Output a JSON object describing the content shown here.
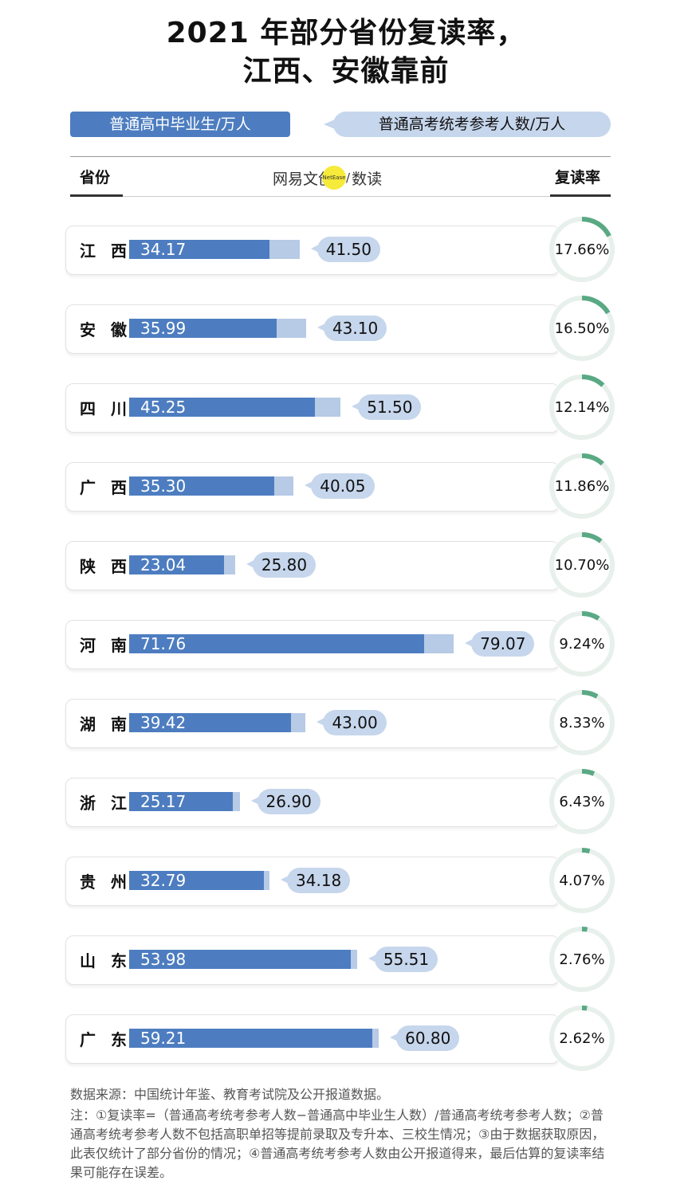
{
  "title_line1": "2021 年部分省份复读率，",
  "title_line2": "江西、安徽靠前",
  "legend": {
    "graduates": "普通高中毕业生/万人",
    "examinees": "普通高考统考参考人数/万人"
  },
  "header": {
    "province": "省份",
    "brand": "网易文创",
    "brand_dot": "NetEase",
    "brand_sep": "/",
    "brand_suffix": "数读",
    "rate": "复读率"
  },
  "colors": {
    "graduates": "#4d7dc0",
    "examinees": "#b7cae6",
    "rate_arc": "#5aa985",
    "ring": "#e8f0ec"
  },
  "chart_data": {
    "type": "bar",
    "categories": [
      "江 西",
      "安 徽",
      "四 川",
      "广 西",
      "陕 西",
      "河 南",
      "湖 南",
      "浙 江",
      "贵 州",
      "山 东",
      "广 东"
    ],
    "series": [
      {
        "name": "普通高中毕业生/万人",
        "values": [
          34.17,
          35.99,
          45.25,
          35.3,
          23.04,
          71.76,
          39.42,
          25.17,
          32.79,
          53.98,
          59.21
        ]
      },
      {
        "name": "普通高考统考参考人数/万人",
        "values": [
          41.5,
          43.1,
          51.5,
          40.05,
          25.8,
          79.07,
          43.0,
          26.9,
          34.18,
          55.51,
          60.8
        ]
      },
      {
        "name": "复读率",
        "values": [
          17.66,
          16.5,
          12.14,
          11.86,
          10.7,
          9.24,
          8.33,
          6.43,
          4.07,
          2.76,
          2.62
        ]
      }
    ],
    "graduate_labels": [
      "34.17",
      "35.99",
      "45.25",
      "35.30",
      "23.04",
      "71.76",
      "39.42",
      "25.17",
      "32.79",
      "53.98",
      "59.21"
    ],
    "examinee_labels": [
      "41.50",
      "43.10",
      "51.50",
      "40.05",
      "25.80",
      "79.07",
      "43.00",
      "26.90",
      "34.18",
      "55.51",
      "60.80"
    ],
    "rate_labels": [
      "17.66%",
      "16.50%",
      "12.14%",
      "11.86%",
      "10.70%",
      "9.24%",
      "8.33%",
      "6.43%",
      "4.07%",
      "2.76%",
      "2.62%"
    ],
    "xlim": [
      0,
      80
    ]
  },
  "source": "数据来源：中国统计年鉴、教育考试院及公开报道数据。",
  "note": "注：①复读率=（普通高考统考参考人数−普通高中毕业生人数）/普通高考统考参考人数；②普通高考统考参考人数不包括高职单招等提前录取及专升本、三校生情况；③由于数据获取原因，此表仅统计了部分省份的情况；④普通高考统考参考人数由公开报道得来，最后估算的复读率结果可能存在误差。"
}
